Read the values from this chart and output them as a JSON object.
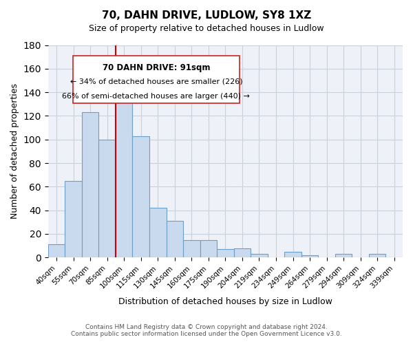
{
  "title_line1": "70, DAHN DRIVE, LUDLOW, SY8 1XZ",
  "title_line2": "Size of property relative to detached houses in Ludlow",
  "xlabel": "Distribution of detached houses by size in Ludlow",
  "ylabel": "Number of detached properties",
  "bar_labels": [
    "40sqm",
    "55sqm",
    "70sqm",
    "85sqm",
    "100sqm",
    "115sqm",
    "130sqm",
    "145sqm",
    "160sqm",
    "175sqm",
    "190sqm",
    "204sqm",
    "219sqm",
    "234sqm",
    "249sqm",
    "264sqm",
    "279sqm",
    "294sqm",
    "309sqm",
    "324sqm",
    "339sqm"
  ],
  "bar_values": [
    11,
    65,
    123,
    100,
    134,
    103,
    42,
    31,
    15,
    15,
    7,
    8,
    3,
    0,
    5,
    2,
    0,
    3,
    0,
    3,
    0
  ],
  "bar_color": "#c9d9ee",
  "bar_edge_color": "#6b9ec8",
  "ylim": [
    0,
    180
  ],
  "yticks": [
    0,
    20,
    40,
    60,
    80,
    100,
    120,
    140,
    160,
    180
  ],
  "red_line_x": 3.5,
  "annotation_title": "70 DAHN DRIVE: 91sqm",
  "annotation_line1": "← 34% of detached houses are smaller (226)",
  "annotation_line2": "66% of semi-detached houses are larger (440) →",
  "footer_line1": "Contains HM Land Registry data © Crown copyright and database right 2024.",
  "footer_line2": "Contains public sector information licensed under the Open Government Licence v3.0.",
  "bg_color": "#ffffff",
  "grid_color": "#c8d0dc",
  "plot_bg_color": "#eef2f8"
}
